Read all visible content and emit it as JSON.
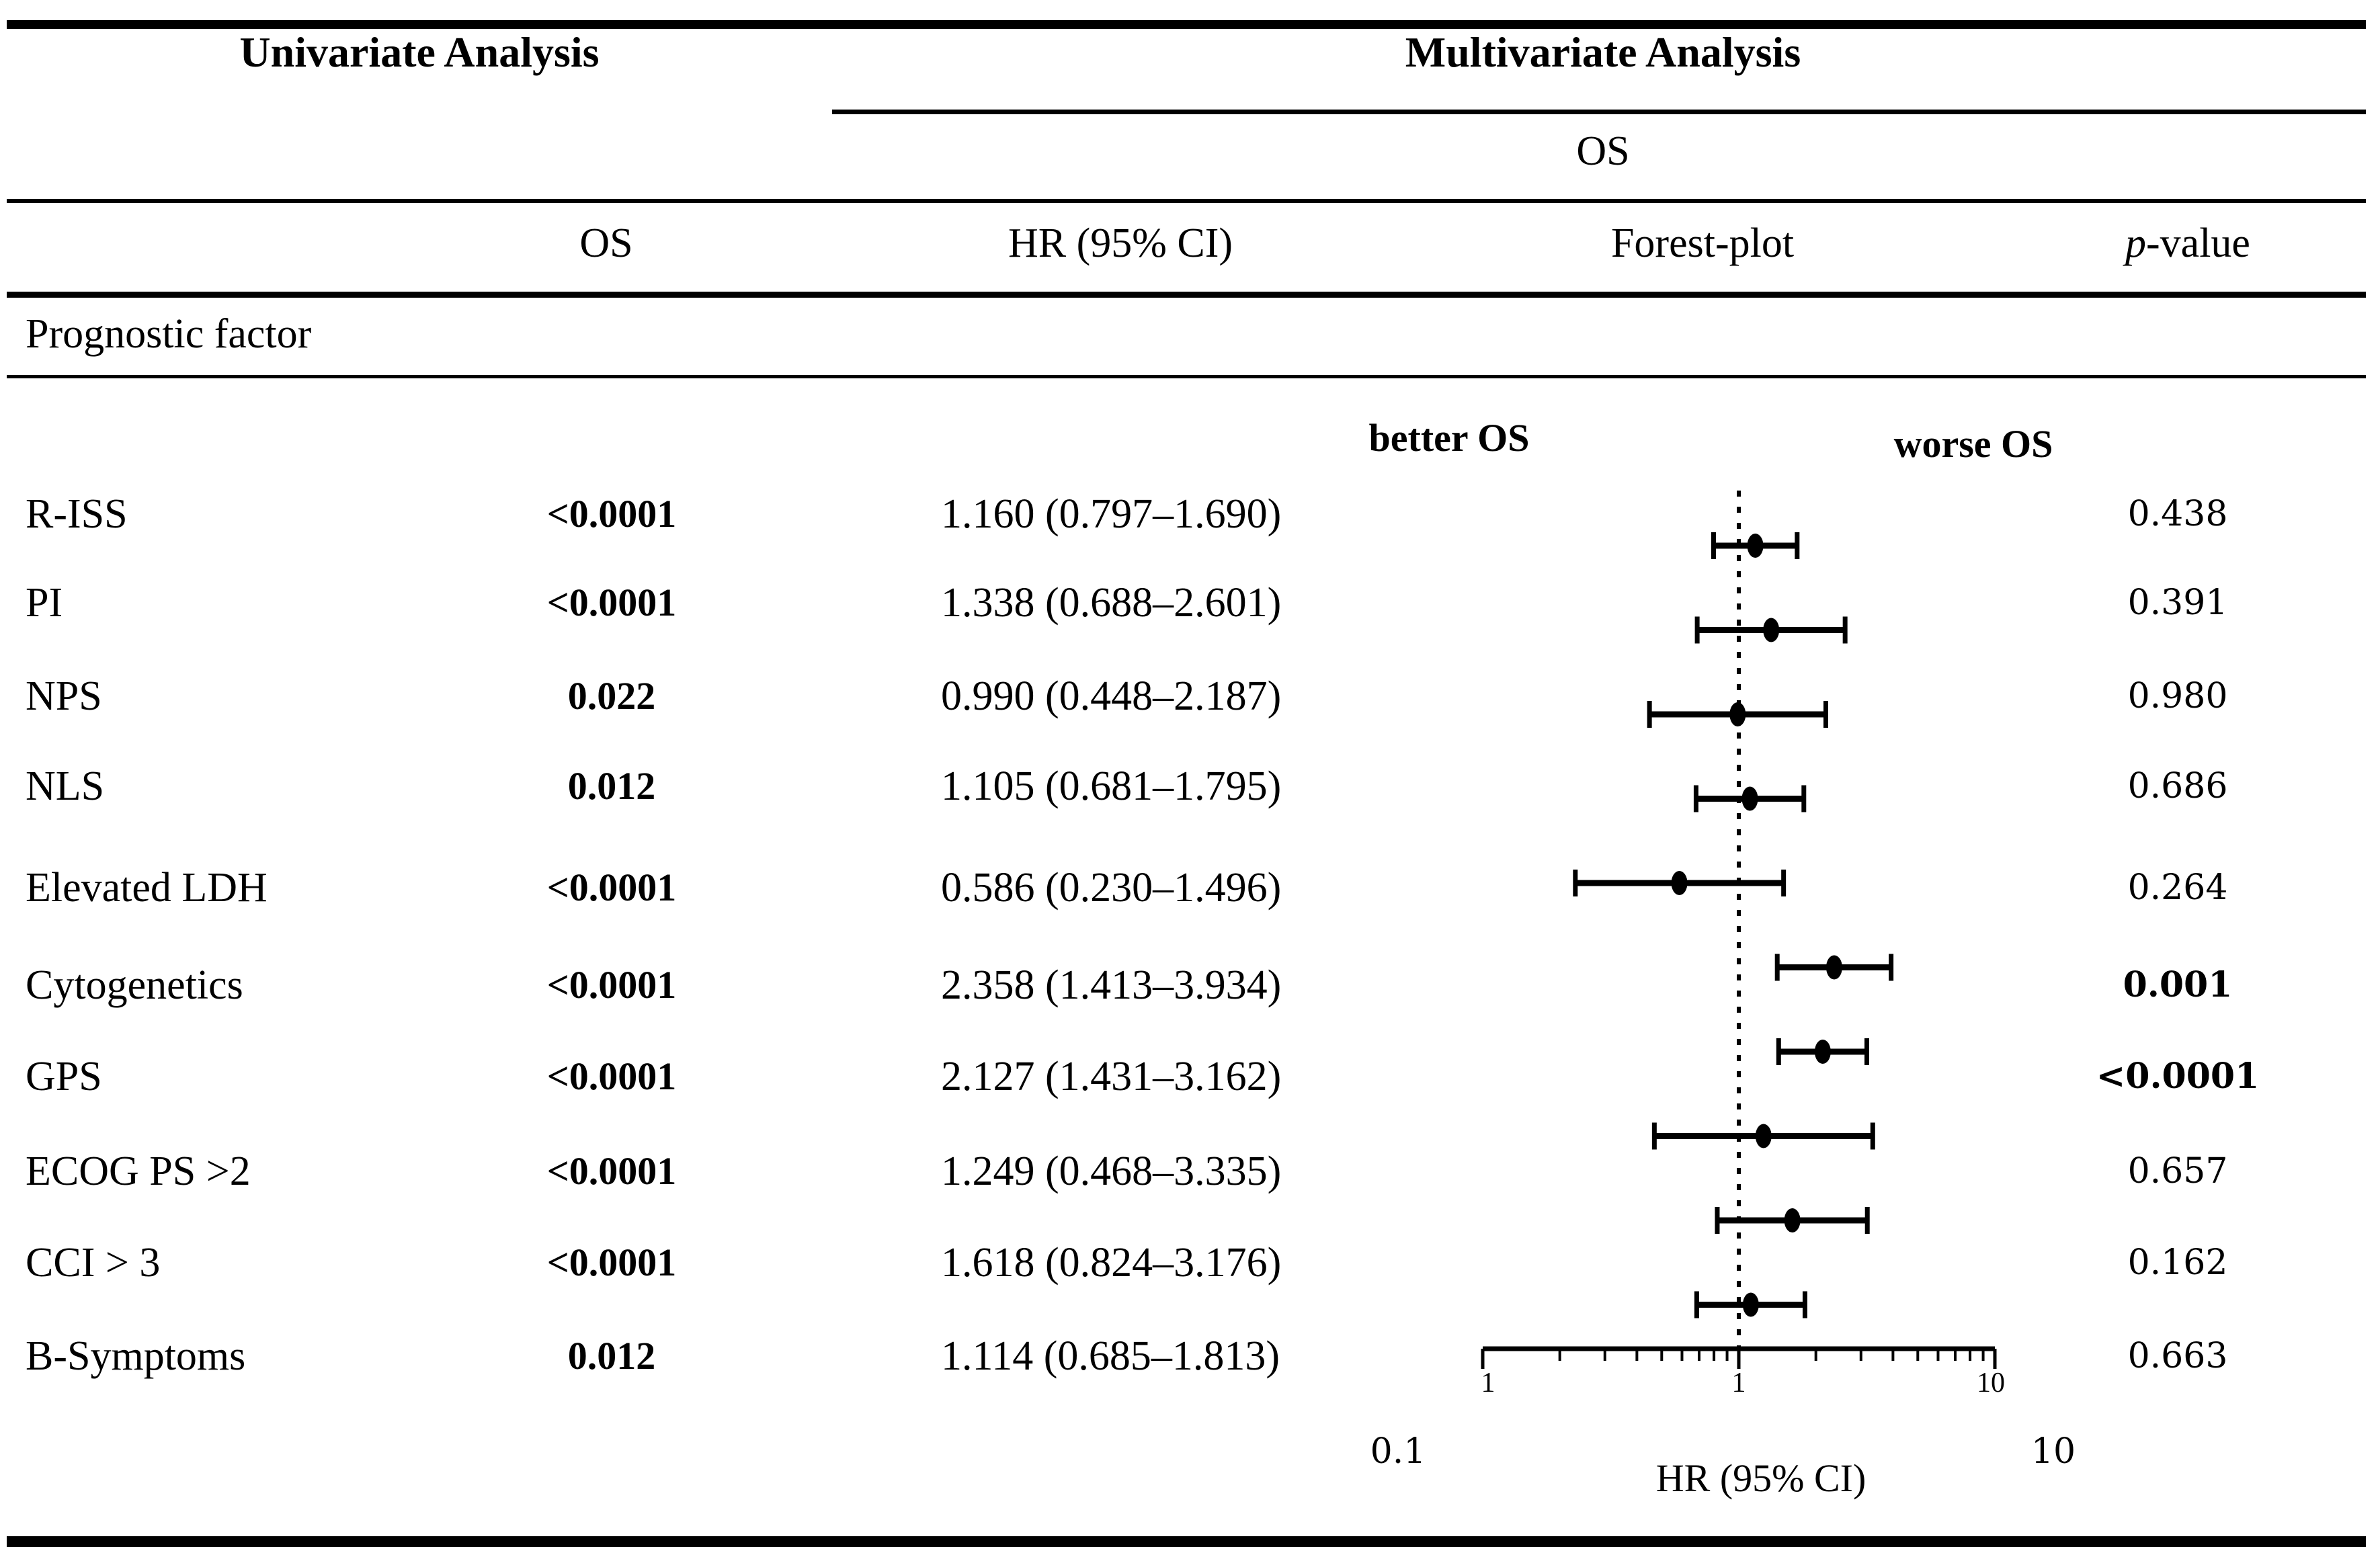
{
  "figure": {
    "univariate_title": "Univariate Analysis",
    "multivariate_title": "Multivariate Analysis",
    "multivariate_subheader": "OS",
    "columns": {
      "univariate_os": "OS",
      "hr": "HR (95% CI)",
      "forest": "Forest-plot",
      "p_italic": "p",
      "p_rest": "-value"
    },
    "section_label": "Prognostic factor"
  },
  "rows": [
    {
      "label": "R-ISS",
      "uni_p": "<0.0001",
      "hr_ci": "1.160 (0.797–1.690)",
      "mv_p": "0.438",
      "mv_p_bold": false
    },
    {
      "label": "PI",
      "uni_p": "<0.0001",
      "hr_ci": "1.338 (0.688–2.601)",
      "mv_p": "0.391",
      "mv_p_bold": false
    },
    {
      "label": "NPS",
      "uni_p": "0.022",
      "hr_ci": "0.990 (0.448–2.187)",
      "mv_p": "0.980",
      "mv_p_bold": false
    },
    {
      "label": "NLS",
      "uni_p": "0.012",
      "hr_ci": "1.105 (0.681–1.795)",
      "mv_p": "0.686",
      "mv_p_bold": false
    },
    {
      "label": "Elevated LDH",
      "uni_p": "<0.0001",
      "hr_ci": "0.586 (0.230–1.496)",
      "mv_p": "0.264",
      "mv_p_bold": false
    },
    {
      "label": "Cytogenetics",
      "uni_p": "<0.0001",
      "hr_ci": "2.358 (1.413–3.934)",
      "mv_p": "0.001",
      "mv_p_bold": true
    },
    {
      "label": "GPS",
      "uni_p": "<0.0001",
      "hr_ci": "2.127 (1.431–3.162)",
      "mv_p": "<0.0001",
      "mv_p_bold": true
    },
    {
      "label": "ECOG PS >2",
      "uni_p": "<0.0001",
      "hr_ci": "1.249 (0.468–3.335)",
      "mv_p": "0.657",
      "mv_p_bold": false
    },
    {
      "label": "CCI > 3",
      "uni_p": "<0.0001",
      "hr_ci": "1.618 (0.824–3.176)",
      "mv_p": "0.162",
      "mv_p_bold": false
    },
    {
      "label": "B-Symptoms",
      "uni_p": "0.012",
      "hr_ci": "1.114 (0.685–1.813)",
      "mv_p": "0.663",
      "mv_p_bold": false
    }
  ],
  "forest": {
    "better_label": "better OS",
    "worse_label": "worse OS",
    "axis_small_tick_labels": [
      "1",
      "1",
      "10"
    ],
    "axis_min_label": "0.1",
    "axis_max_label": "10",
    "axis_title": "HR (95% CI)"
  },
  "chart_data": {
    "type": "scatter",
    "subtype": "forest-plot",
    "title": "Forest-plot",
    "xlabel": "HR (95% CI)",
    "xscale": "log",
    "xlim": [
      0.1,
      10
    ],
    "reference_line_x": 1,
    "annotations": [
      "better OS",
      "worse OS"
    ],
    "axis_tick_labels_small": [
      "1",
      "1",
      "10"
    ],
    "axis_tick_labels_large": [
      "0.1",
      "10"
    ],
    "categories": [
      "R-ISS",
      "PI",
      "NPS",
      "NLS",
      "Elevated LDH",
      "Cytogenetics",
      "GPS",
      "ECOG PS >2",
      "CCI > 3",
      "B-Symptoms"
    ],
    "points": [
      {
        "label": "R-ISS",
        "hr": 1.16,
        "ci_low": 0.797,
        "ci_high": 1.69,
        "p": "0.438"
      },
      {
        "label": "PI",
        "hr": 1.338,
        "ci_low": 0.688,
        "ci_high": 2.601,
        "p": "0.391"
      },
      {
        "label": "NPS",
        "hr": 0.99,
        "ci_low": 0.448,
        "ci_high": 2.187,
        "p": "0.980"
      },
      {
        "label": "NLS",
        "hr": 1.105,
        "ci_low": 0.681,
        "ci_high": 1.795,
        "p": "0.686"
      },
      {
        "label": "Elevated LDH",
        "hr": 0.586,
        "ci_low": 0.23,
        "ci_high": 1.496,
        "p": "0.264"
      },
      {
        "label": "Cytogenetics",
        "hr": 2.358,
        "ci_low": 1.413,
        "ci_high": 3.934,
        "p": "0.001"
      },
      {
        "label": "GPS",
        "hr": 2.127,
        "ci_low": 1.431,
        "ci_high": 3.162,
        "p": "<0.0001"
      },
      {
        "label": "ECOG PS >2",
        "hr": 1.249,
        "ci_low": 0.468,
        "ci_high": 3.335,
        "p": "0.657"
      },
      {
        "label": "CCI > 3",
        "hr": 1.618,
        "ci_low": 0.824,
        "ci_high": 3.176,
        "p": "0.162"
      },
      {
        "label": "B-Symptoms",
        "hr": 1.114,
        "ci_low": 0.685,
        "ci_high": 1.813,
        "p": "0.663"
      }
    ]
  },
  "colors": {
    "background": "#ffffff",
    "text": "#000000",
    "rule": "#000000",
    "marker": "#000000"
  }
}
